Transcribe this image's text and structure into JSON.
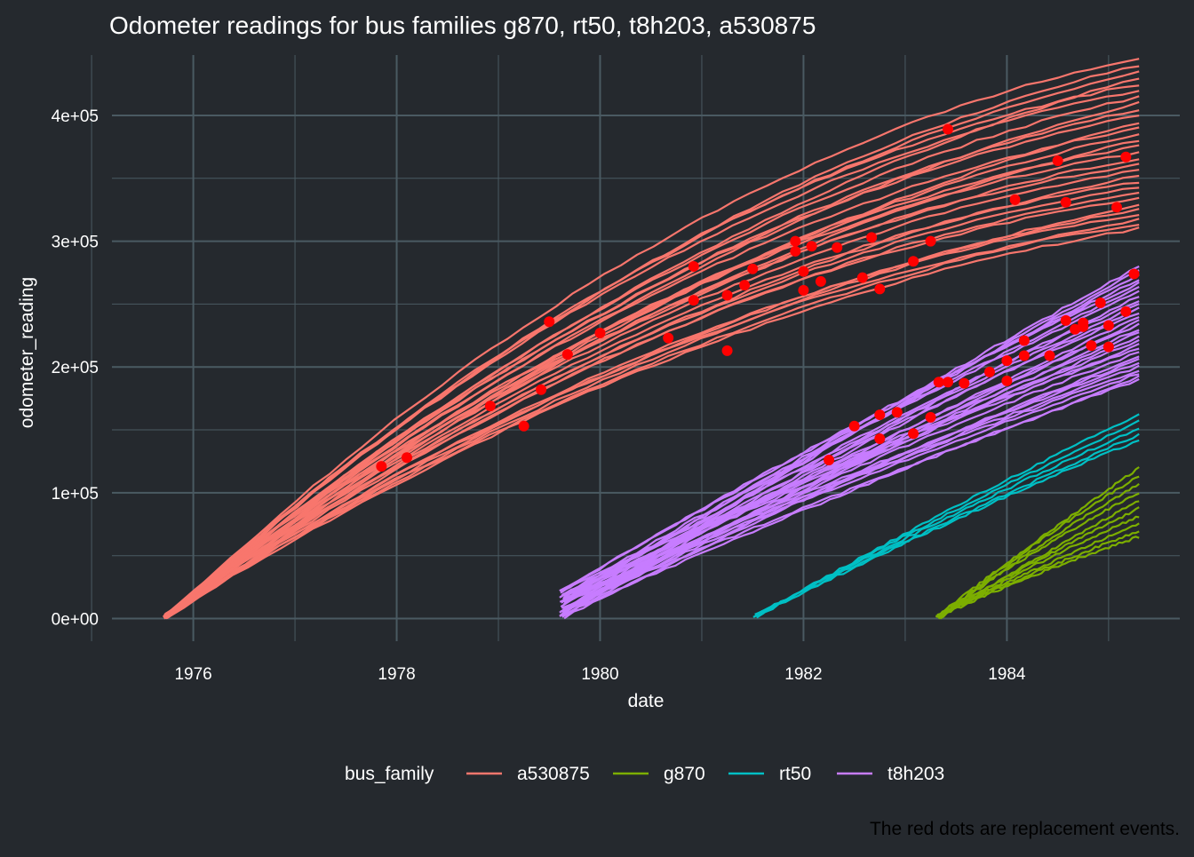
{
  "chart_data": {
    "type": "line",
    "title": "Odometer readings for bus families g870, rt50, t8h203, a530875",
    "xlabel": "date",
    "ylabel": "odometer_reading",
    "caption": "The red dots are replacement events.",
    "legend": {
      "title": "bus_family",
      "placement": "bottom"
    },
    "grid": true,
    "xlim": [
      1975.2,
      1985.7
    ],
    "ylim": [
      -18000,
      448000
    ],
    "x_ticks": [
      {
        "value": 1976,
        "label": "1976"
      },
      {
        "value": 1978,
        "label": "1978"
      },
      {
        "value": 1980,
        "label": "1980"
      },
      {
        "value": 1982,
        "label": "1982"
      },
      {
        "value": 1984,
        "label": "1984"
      }
    ],
    "y_ticks": [
      {
        "value": 0,
        "label": "0e+00"
      },
      {
        "value": 100000,
        "label": "1e+05"
      },
      {
        "value": 200000,
        "label": "2e+05"
      },
      {
        "value": 300000,
        "label": "3e+05"
      },
      {
        "value": 400000,
        "label": "4e+05"
      }
    ],
    "colors": {
      "a530875": "#f8766d",
      "g870": "#7cae00",
      "rt50": "#00bfc4",
      "t8h203": "#c77cff",
      "events": "#ff0000"
    },
    "series": [
      {
        "name": "a530875",
        "start_date": 1975.7,
        "end_date": 1985.3,
        "final_reading_range": [
          310000,
          445000
        ],
        "bus_count": 30
      },
      {
        "name": "g870",
        "start_date": 1983.3,
        "end_date": 1985.3,
        "final_reading_range": [
          65000,
          120000
        ],
        "bus_count": 10
      },
      {
        "name": "rt50",
        "start_date": 1981.5,
        "end_date": 1985.3,
        "final_reading_range": [
          142000,
          162000
        ],
        "bus_count": 5
      },
      {
        "name": "t8h203",
        "start_date": 1979.6,
        "end_date": 1985.3,
        "final_reading_range": [
          190000,
          280000
        ],
        "bus_count": 30
      }
    ],
    "events": [
      {
        "x": 1977.85,
        "y": 121000
      },
      {
        "x": 1978.1,
        "y": 128000
      },
      {
        "x": 1978.92,
        "y": 169000
      },
      {
        "x": 1979.25,
        "y": 153000
      },
      {
        "x": 1979.42,
        "y": 182000
      },
      {
        "x": 1979.5,
        "y": 236000
      },
      {
        "x": 1979.68,
        "y": 210000
      },
      {
        "x": 1980.0,
        "y": 227000
      },
      {
        "x": 1980.67,
        "y": 223000
      },
      {
        "x": 1980.92,
        "y": 280000
      },
      {
        "x": 1980.92,
        "y": 253000
      },
      {
        "x": 1981.25,
        "y": 257000
      },
      {
        "x": 1981.25,
        "y": 213000
      },
      {
        "x": 1981.42,
        "y": 265000
      },
      {
        "x": 1981.5,
        "y": 278000
      },
      {
        "x": 1981.92,
        "y": 300000
      },
      {
        "x": 1981.92,
        "y": 292000
      },
      {
        "x": 1982.0,
        "y": 276000
      },
      {
        "x": 1982.0,
        "y": 261000
      },
      {
        "x": 1982.08,
        "y": 296000
      },
      {
        "x": 1982.17,
        "y": 268000
      },
      {
        "x": 1982.25,
        "y": 126000
      },
      {
        "x": 1982.33,
        "y": 295000
      },
      {
        "x": 1982.5,
        "y": 153000
      },
      {
        "x": 1982.58,
        "y": 271000
      },
      {
        "x": 1982.67,
        "y": 303000
      },
      {
        "x": 1982.75,
        "y": 262000
      },
      {
        "x": 1982.75,
        "y": 162000
      },
      {
        "x": 1982.75,
        "y": 143000
      },
      {
        "x": 1982.92,
        "y": 164000
      },
      {
        "x": 1983.08,
        "y": 284000
      },
      {
        "x": 1983.08,
        "y": 147000
      },
      {
        "x": 1983.25,
        "y": 300000
      },
      {
        "x": 1983.25,
        "y": 160000
      },
      {
        "x": 1983.33,
        "y": 188000
      },
      {
        "x": 1983.42,
        "y": 389000
      },
      {
        "x": 1983.42,
        "y": 188000
      },
      {
        "x": 1983.58,
        "y": 187000
      },
      {
        "x": 1983.83,
        "y": 196000
      },
      {
        "x": 1984.0,
        "y": 205000
      },
      {
        "x": 1984.0,
        "y": 189000
      },
      {
        "x": 1984.08,
        "y": 333000
      },
      {
        "x": 1984.17,
        "y": 221000
      },
      {
        "x": 1984.17,
        "y": 209000
      },
      {
        "x": 1984.42,
        "y": 209000
      },
      {
        "x": 1984.5,
        "y": 364000
      },
      {
        "x": 1984.58,
        "y": 331000
      },
      {
        "x": 1984.58,
        "y": 237000
      },
      {
        "x": 1984.67,
        "y": 230000
      },
      {
        "x": 1984.75,
        "y": 235000
      },
      {
        "x": 1984.75,
        "y": 232000
      },
      {
        "x": 1984.83,
        "y": 217000
      },
      {
        "x": 1984.92,
        "y": 251000
      },
      {
        "x": 1985.0,
        "y": 233000
      },
      {
        "x": 1985.0,
        "y": 216000
      },
      {
        "x": 1985.08,
        "y": 327000
      },
      {
        "x": 1985.17,
        "y": 367000
      },
      {
        "x": 1985.17,
        "y": 244000
      },
      {
        "x": 1985.25,
        "y": 274000
      }
    ]
  }
}
